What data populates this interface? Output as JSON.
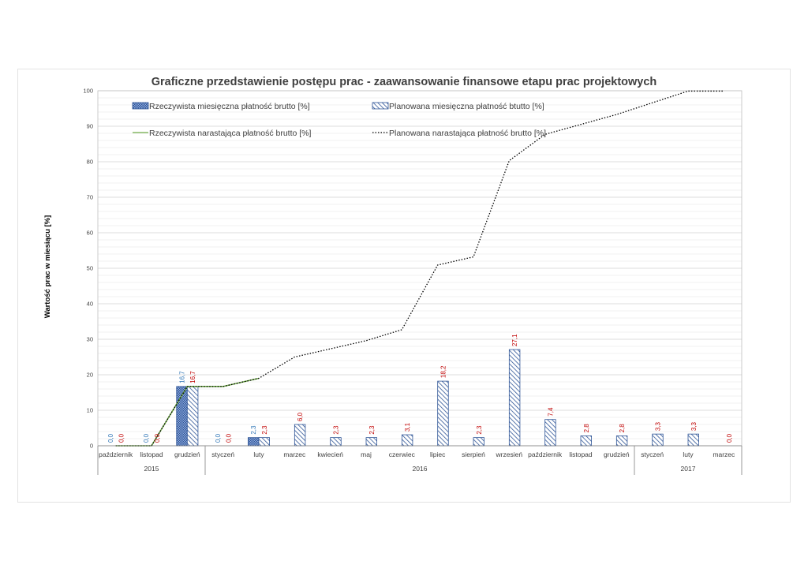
{
  "chart_data": {
    "type": "bar",
    "title": "Graficzne przedstawienie postępu prac -  zaawansowanie finansowe etapu prac projektowych",
    "ylabel": "Wartość prac w miesiącu [%]",
    "ylim": [
      0,
      100
    ],
    "yticks": [
      0,
      10,
      20,
      30,
      40,
      50,
      60,
      70,
      80,
      90,
      100
    ],
    "grid": true,
    "legend_position": "top-left",
    "categories": [
      "październik",
      "listopad",
      "grudzień",
      "styczeń",
      "luty",
      "marzec",
      "kwiecień",
      "maj",
      "czerwiec",
      "lipiec",
      "sierpień",
      "wrzesień",
      "październik",
      "listopad",
      "grudzień",
      "styczeń",
      "luty",
      "marzec"
    ],
    "years": [
      {
        "label": "2015",
        "start": 0,
        "end": 2
      },
      {
        "label": "2016",
        "start": 3,
        "end": 14
      },
      {
        "label": "2017",
        "start": 15,
        "end": 17
      }
    ],
    "series": [
      {
        "name": "Rzeczywista miesięczna płatność brutto [%]",
        "kind": "bar",
        "color": "#2f5597",
        "label_color": "#2e75b6",
        "values": [
          0.0,
          0.0,
          16.7,
          0.0,
          2.3,
          null,
          null,
          null,
          null,
          null,
          null,
          null,
          null,
          null,
          null,
          null,
          null,
          null
        ],
        "labels": [
          "0,0",
          "0,0",
          "16,7",
          "0,0",
          "2,3",
          "",
          "",
          "",
          "",
          "",
          "",
          "",
          "",
          "",
          "",
          "",
          "",
          ""
        ]
      },
      {
        "name": "Planowana miesięczna płatność btutto [%]",
        "kind": "bar",
        "color": "#2f5597",
        "label_color": "#c00000",
        "values": [
          0.0,
          0.0,
          16.7,
          0.0,
          2.3,
          6.0,
          2.3,
          2.3,
          3.1,
          18.2,
          2.3,
          27.1,
          7.4,
          2.8,
          2.8,
          3.3,
          3.3,
          0.0
        ],
        "labels": [
          "0,0",
          "0,0",
          "16,7",
          "0,0",
          "2,3",
          "6,0",
          "2,3",
          "2,3",
          "3,1",
          "18,2",
          "2,3",
          "27,1",
          "7,4",
          "2,8",
          "2,8",
          "3,3",
          "3,3",
          "0,0"
        ]
      },
      {
        "name": "Rzeczywista narastająca płatność brutto [%]",
        "kind": "line",
        "color": "#70ad47",
        "values": [
          0.0,
          0.0,
          16.7,
          16.7,
          19.0,
          null,
          null,
          null,
          null,
          null,
          null,
          null,
          null,
          null,
          null,
          null,
          null,
          null
        ]
      },
      {
        "name": "Planowana narastająca płatność brutto [%]",
        "kind": "dotted-line",
        "color": "#000000",
        "values": [
          0.0,
          0.0,
          16.7,
          16.7,
          19.0,
          25.0,
          27.3,
          29.6,
          32.7,
          50.9,
          53.2,
          80.3,
          87.7,
          90.5,
          93.3,
          96.6,
          99.9,
          99.9
        ]
      }
    ]
  }
}
